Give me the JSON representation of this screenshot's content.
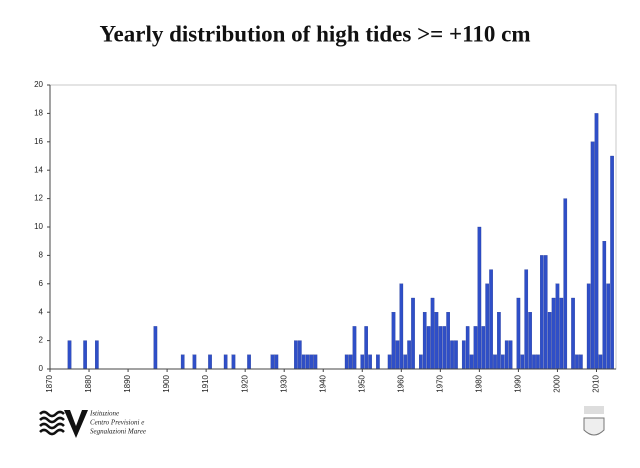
{
  "chart_data": {
    "type": "bar",
    "title": "Yearly distribution of high tides >= +110 cm",
    "x": [
      1875,
      1879,
      1882,
      1897,
      1904,
      1907,
      1911,
      1915,
      1917,
      1921,
      1927,
      1928,
      1933,
      1934,
      1935,
      1936,
      1937,
      1938,
      1946,
      1947,
      1948,
      1950,
      1951,
      1952,
      1954,
      1957,
      1958,
      1959,
      1960,
      1961,
      1962,
      1963,
      1965,
      1966,
      1967,
      1968,
      1969,
      1970,
      1971,
      1972,
      1973,
      1974,
      1976,
      1977,
      1978,
      1979,
      1980,
      1981,
      1982,
      1983,
      1984,
      1985,
      1986,
      1987,
      1988,
      1990,
      1991,
      1992,
      1993,
      1994,
      1995,
      1996,
      1997,
      1998,
      1999,
      2000,
      2001,
      2002,
      2004,
      2005,
      2006,
      2008,
      2009,
      2010,
      2011,
      2012,
      2013,
      2014
    ],
    "values": [
      2,
      2,
      2,
      3,
      1,
      1,
      1,
      1,
      1,
      1,
      1,
      1,
      2,
      2,
      1,
      1,
      1,
      1,
      1,
      1,
      3,
      1,
      3,
      1,
      1,
      1,
      4,
      2,
      6,
      1,
      2,
      5,
      1,
      4,
      3,
      5,
      4,
      3,
      3,
      4,
      2,
      2,
      2,
      3,
      1,
      3,
      10,
      3,
      6,
      7,
      1,
      4,
      1,
      2,
      2,
      5,
      1,
      7,
      4,
      1,
      1,
      8,
      8,
      4,
      5,
      6,
      5,
      12,
      5,
      1,
      1,
      6,
      16,
      18,
      1,
      9,
      6,
      15
    ],
    "color": "#2f4fc8",
    "xlim": [
      1870,
      2015
    ],
    "xticks": [
      1870,
      1880,
      1890,
      1900,
      1910,
      1920,
      1930,
      1940,
      1950,
      1960,
      1970,
      1980,
      1990,
      2000,
      2010
    ],
    "ylim": [
      0,
      20
    ],
    "yticks": [
      0,
      2,
      4,
      6,
      8,
      10,
      12,
      14,
      16,
      18,
      20
    ],
    "grid": false
  },
  "logo": {
    "lines": [
      "Istituzione",
      "Centro Previsioni e",
      "Segnalazioni Maree"
    ]
  }
}
